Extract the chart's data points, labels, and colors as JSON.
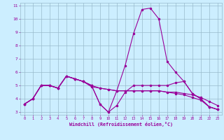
{
  "xlabel": "Windchill (Refroidissement éolien,°C)",
  "bg_color": "#cceeff",
  "line_color": "#990099",
  "grid_color": "#99bbcc",
  "xlim": [
    -0.5,
    23.5
  ],
  "ylim": [
    2.8,
    11.2
  ],
  "xticks": [
    0,
    1,
    2,
    3,
    4,
    5,
    6,
    7,
    8,
    9,
    10,
    11,
    12,
    13,
    14,
    15,
    16,
    17,
    18,
    19,
    20,
    21,
    22,
    23
  ],
  "yticks": [
    3,
    4,
    5,
    6,
    7,
    8,
    9,
    10,
    11
  ],
  "series": [
    [
      3.6,
      4.0,
      5.0,
      5.0,
      4.8,
      5.7,
      5.5,
      5.3,
      5.0,
      3.6,
      3.0,
      4.6,
      6.5,
      8.9,
      10.7,
      10.8,
      10.0,
      6.8,
      6.0,
      5.3,
      4.4,
      4.0,
      3.4,
      3.2
    ],
    [
      3.6,
      4.0,
      5.0,
      5.0,
      4.8,
      5.7,
      5.5,
      5.3,
      4.9,
      4.8,
      4.7,
      4.6,
      4.6,
      4.6,
      4.6,
      4.6,
      4.6,
      4.5,
      4.5,
      4.4,
      4.3,
      4.1,
      3.8,
      3.5
    ],
    [
      3.6,
      4.0,
      5.0,
      5.0,
      4.8,
      5.7,
      5.5,
      5.3,
      5.0,
      3.6,
      3.0,
      3.5,
      4.5,
      5.0,
      5.0,
      5.0,
      5.0,
      5.0,
      5.2,
      5.3,
      4.4,
      4.0,
      3.4,
      3.2
    ],
    [
      3.6,
      4.0,
      5.0,
      5.0,
      4.8,
      5.7,
      5.5,
      5.3,
      5.0,
      4.8,
      4.7,
      4.6,
      4.6,
      4.6,
      4.6,
      4.6,
      4.6,
      4.5,
      4.4,
      4.3,
      4.1,
      3.9,
      3.4,
      3.2
    ]
  ]
}
